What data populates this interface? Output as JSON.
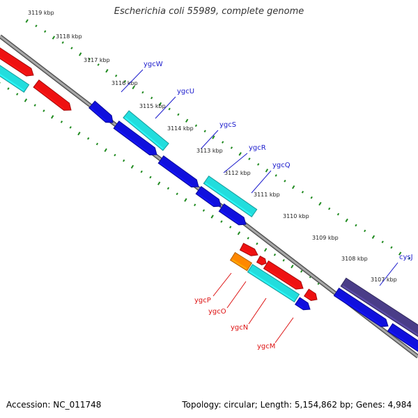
{
  "title": "Escherichia coli 55989, complete genome",
  "footer": {
    "accession": "Accession: NC_011748",
    "summary": "Topology: circular; Length: 5,154,862 bp; Genes: 4,984"
  },
  "colors": {
    "background": "#ffffff",
    "backbone": "#7f7f7f",
    "scale_ticks": "#1f8a1f",
    "forward_strand_label": "#1a1acc",
    "reverse_strand_label": "#dd1111",
    "gene_blue": "#1010dd",
    "gene_cyan": "#22dddd",
    "gene_red": "#ee1111",
    "gene_orange": "#ff8800",
    "gene_purple": "#4a3d88"
  },
  "scale": {
    "unit": "kbp",
    "ticks": [
      {
        "kbp": 3119,
        "label": "3119 kbp"
      },
      {
        "kbp": 3118,
        "label": "3118 kbp"
      },
      {
        "kbp": 3117,
        "label": "3117 kbp"
      },
      {
        "kbp": 3116,
        "label": "3116 kbp"
      },
      {
        "kbp": 3115,
        "label": "3115 kbp"
      },
      {
        "kbp": 3114,
        "label": "3114 kbp"
      },
      {
        "kbp": 3113,
        "label": "3113 kbp"
      },
      {
        "kbp": 3112,
        "label": "3112 kbp"
      },
      {
        "kbp": 3111,
        "label": "3111 kbp"
      },
      {
        "kbp": 3110,
        "label": "3110 kbp"
      },
      {
        "kbp": 3109,
        "label": "3109 kbp"
      },
      {
        "kbp": 3108,
        "label": "3108 kbp"
      },
      {
        "kbp": 3107,
        "label": "3107 kbp"
      }
    ]
  },
  "gene_labels": [
    {
      "name": "ygcW",
      "strand": "forward"
    },
    {
      "name": "ygcU",
      "strand": "forward"
    },
    {
      "name": "ygcS",
      "strand": "forward"
    },
    {
      "name": "ygcR",
      "strand": "forward"
    },
    {
      "name": "ygcQ",
      "strand": "forward"
    },
    {
      "name": "cysJ",
      "strand": "forward"
    },
    {
      "name": "ygcP",
      "strand": "reverse"
    },
    {
      "name": "ygcO",
      "strand": "reverse"
    },
    {
      "name": "ygcN",
      "strand": "reverse"
    },
    {
      "name": "ygcM",
      "strand": "reverse"
    }
  ],
  "features": [
    {
      "id": "red-a",
      "color": "gene_red"
    },
    {
      "id": "cyan-a",
      "color": "gene_cyan"
    },
    {
      "id": "red-b",
      "color": "gene_red"
    },
    {
      "id": "blue-ygcW",
      "color": "gene_blue"
    },
    {
      "id": "cyan-ygcU",
      "color": "gene_cyan"
    },
    {
      "id": "blue-ygcS-a",
      "color": "gene_blue"
    },
    {
      "id": "blue-ygcS-b",
      "color": "gene_blue"
    },
    {
      "id": "cyan-ygcR",
      "color": "gene_cyan"
    },
    {
      "id": "blue-ygcQ-a",
      "color": "gene_blue"
    },
    {
      "id": "blue-ygcQ-b",
      "color": "gene_blue"
    },
    {
      "id": "red-small-a",
      "color": "gene_red"
    },
    {
      "id": "red-small-b",
      "color": "gene_red"
    },
    {
      "id": "orange-ygcP",
      "color": "gene_orange"
    },
    {
      "id": "red-long",
      "color": "gene_red"
    },
    {
      "id": "cyan-ygcN",
      "color": "gene_cyan"
    },
    {
      "id": "red-tip",
      "color": "gene_red"
    },
    {
      "id": "blue-ygcM",
      "color": "gene_blue"
    },
    {
      "id": "purple-cysJ",
      "color": "gene_purple"
    },
    {
      "id": "blue-cysJ-a",
      "color": "gene_blue"
    },
    {
      "id": "blue-cysJ-b",
      "color": "gene_blue"
    }
  ]
}
